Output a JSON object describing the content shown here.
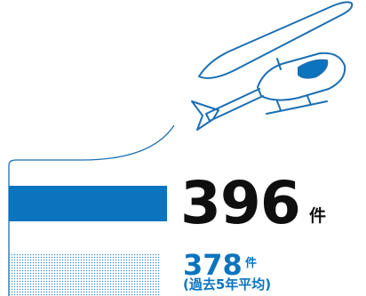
{
  "colors": {
    "current": "#0a74bf",
    "average": "#3a8fd0",
    "text": "#0f0f0f",
    "line": "#1b6fb3"
  },
  "chart_data": {
    "type": "bar",
    "orientation": "horizontal",
    "categories": [
      "",
      "過去5年平均"
    ],
    "values": [
      396,
      378
    ],
    "labels": {
      "current_value": "396",
      "current_unit": "件",
      "average_value": "378",
      "average_unit": "件",
      "average_note": "(過去5年平均)"
    },
    "xlim": [
      0,
      396
    ],
    "grid": false,
    "legend": "none"
  },
  "illustration": {
    "icon": "helicopter-icon"
  }
}
